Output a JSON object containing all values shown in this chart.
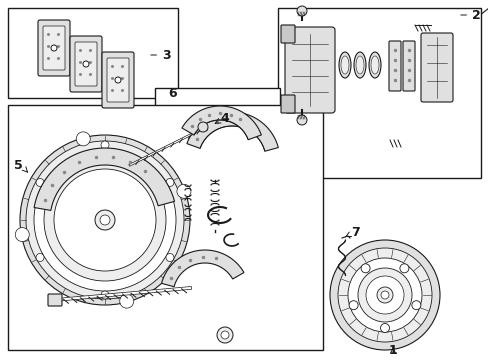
{
  "bg_color": "#ffffff",
  "lc": "#1a1a1a",
  "gray1": "#c8c8c8",
  "gray2": "#e0e0e0",
  "gray3": "#eeeeee",
  "stipple": "#888888"
}
